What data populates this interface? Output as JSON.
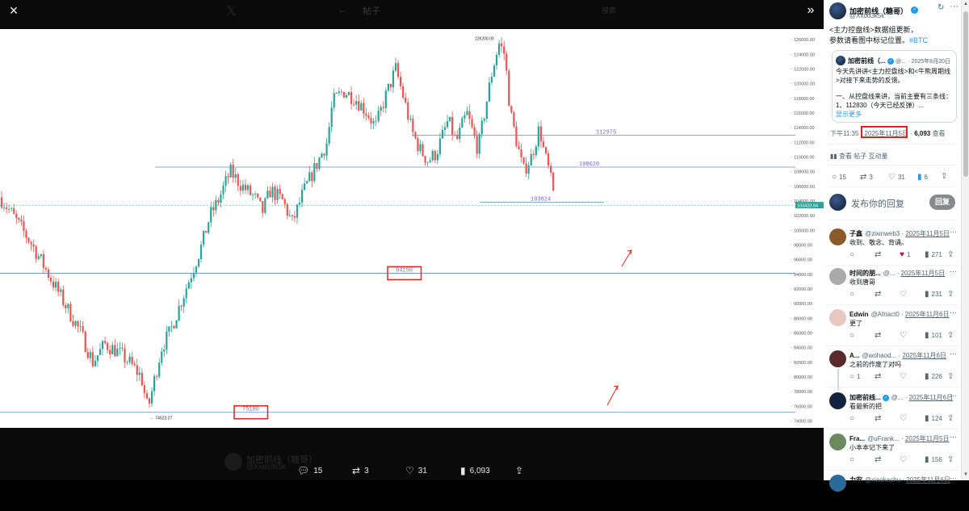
{
  "viewer": {
    "close_icon": "×",
    "x_logo": "𝕏",
    "back_icon": "←",
    "title": "帖子",
    "search": "搜索",
    "collapse_icon": "»"
  },
  "chart_data": {
    "type": "candlestick",
    "y_ticks": [
      "126000.00",
      "124000.00",
      "122000.00",
      "120000.00",
      "118000.00",
      "116000.00",
      "114000.00",
      "112000.00",
      "110000.00",
      "108000.00",
      "106000.00",
      "104000.00",
      "102000.00",
      "100000.00",
      "98000.00",
      "96000.00",
      "94000.00",
      "92000.00",
      "90000.00",
      "88000.00",
      "86000.00",
      "84000.00",
      "82000.00",
      "80000.00",
      "78000.00",
      "76000.00",
      "74000.00"
    ],
    "ylim": [
      73500,
      127000
    ],
    "price_label": "103423.94",
    "high_label": "126200.00",
    "low_label": "74522.27",
    "levels": [
      {
        "value": 112975,
        "label": "112975"
      },
      {
        "value": 108620,
        "label": "108620"
      },
      {
        "value": 103824,
        "label": "103824"
      },
      {
        "value": 94150,
        "label": "94150",
        "boxed": true
      },
      {
        "value": 75180,
        "label": "75180",
        "boxed": true
      }
    ],
    "up_color": "#26a69a",
    "down_color": "#ef5350",
    "level_color": "#5b8bd0"
  },
  "bottom_actions": {
    "replies": "15",
    "reposts": "3",
    "likes": "31",
    "views": "6,093"
  },
  "ghost": {
    "author": "加密前线（糖哥）",
    "handle": "@Xxoo3k5k",
    "line": "发布你的回复"
  },
  "post": {
    "author": "加密前线（糖哥）",
    "handle": "@Xxoo3k5k",
    "text1": "<主力控盘线>数据组更新，",
    "text2": "参数请看图中标记位置。",
    "hashtag": "#BTC",
    "quote": {
      "author": "加密前线（...",
      "handle": "@...",
      "date": "· 2025年8月20日",
      "line1": "今天先讲讲<主力控盘线>和<牛熊周期线",
      "line2": ">对接下来走势的反馈。",
      "line3": "一、从控盘线来讲，当前主要有三条线：",
      "line4": "1、112830（今天已经反弹）...",
      "show_more": "显示更多"
    },
    "time": "下午11:35 · ",
    "date": "2025年11月5日",
    "sep": " · ",
    "views": "6,093",
    "views_label": "查看",
    "engagement": "查看 帖子 互动量",
    "replies": "15",
    "reposts": "3",
    "likes": "31",
    "bookmarks": "6"
  },
  "compose": {
    "placeholder": "发布你的回复",
    "button": "回复"
  },
  "replies": [
    {
      "name": "子鑫",
      "handle": "@zixinweb3",
      "date": "2025年11月5日",
      "text": "收到、敬念、背诵。",
      "reply": "",
      "repost": "",
      "like": "1",
      "views": "271",
      "liked": true
    },
    {
      "name": "时间的朋...",
      "handle": "@...",
      "date": "2025年11月5日",
      "text": "收到唐哥",
      "reply": "",
      "repost": "",
      "like": "",
      "views": "231",
      "liked": false
    },
    {
      "name": "Edwin",
      "handle": "@Afriact0",
      "date": "2025年11月6日",
      "text": "更了",
      "reply": "",
      "repost": "",
      "like": "",
      "views": "101",
      "liked": false
    },
    {
      "name": "A...",
      "handle": "@wohaod...",
      "date": "2025年11月6日",
      "text": "之前的作废了对吗",
      "reply": "1",
      "repost": "",
      "like": "",
      "views": "226",
      "liked": false
    },
    {
      "name": "加密前线...",
      "handle": "@...",
      "date": "2025年11月6日",
      "text": "看最新的把",
      "reply": "",
      "repost": "",
      "like": "",
      "views": "124",
      "liked": false,
      "verified": true
    },
    {
      "name": "Fra...",
      "handle": "@uFrank...",
      "date": "2025年11月5日",
      "text": "小本本记下来了",
      "reply": "",
      "repost": "",
      "like": "",
      "views": "156",
      "liked": false
    },
    {
      "name": "力安",
      "handle": "@xiaokachu",
      "date": "2025年11月6日",
      "text": "",
      "reply": "",
      "repost": "",
      "like": "",
      "views": "",
      "liked": false
    }
  ]
}
